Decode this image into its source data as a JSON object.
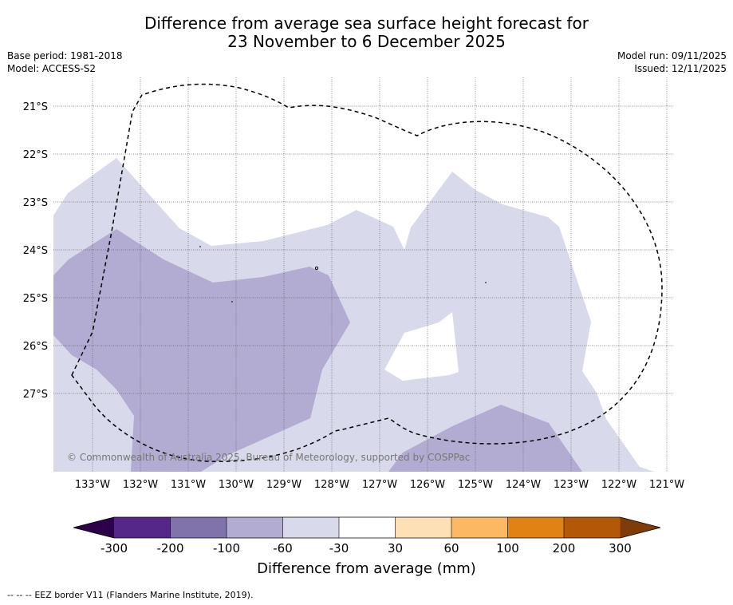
{
  "title": {
    "line1": "Difference from average sea surface height forecast for",
    "line2": "23 November to 6 December 2025"
  },
  "meta_left": {
    "base_period": "Base period: 1981-2018",
    "model": "Model: ACCESS-S2"
  },
  "meta_right": {
    "model_run": "Model run: 09/11/2025",
    "issued": "Issued: 12/11/2025"
  },
  "map": {
    "lat_labels": [
      "21°S",
      "22°S",
      "23°S",
      "24°S",
      "25°S",
      "26°S",
      "27°S"
    ],
    "lon_labels": [
      "133°W",
      "132°W",
      "131°W",
      "130°W",
      "129°W",
      "128°W",
      "127°W",
      "126°W",
      "125°W",
      "124°W",
      "123°W",
      "122°W",
      "121°W"
    ],
    "copyright": "© Commonwealth of Australia 2025, Bureau of Meteorology, supported by COSPPac"
  },
  "colorbar": {
    "title": "Difference from average (mm)",
    "tick_labels": [
      "-300",
      "-200",
      "-100",
      "-60",
      "-30",
      "30",
      "60",
      "100",
      "200",
      "300"
    ],
    "colors": {
      "under": "#2d004b",
      "c1": "#542788",
      "c2": "#8073ac",
      "c3": "#b2abd2",
      "c4": "#d8daeb",
      "c5": "#ffffff",
      "c6": "#fee0b6",
      "c7": "#fdb863",
      "c8": "#e08214",
      "c9": "#b35806",
      "over": "#7f3b08"
    }
  },
  "footer": {
    "legend_symbol": "-- -- --",
    "legend_text": "EEZ border V11 (Flanders Marine Institute, 2019)."
  }
}
